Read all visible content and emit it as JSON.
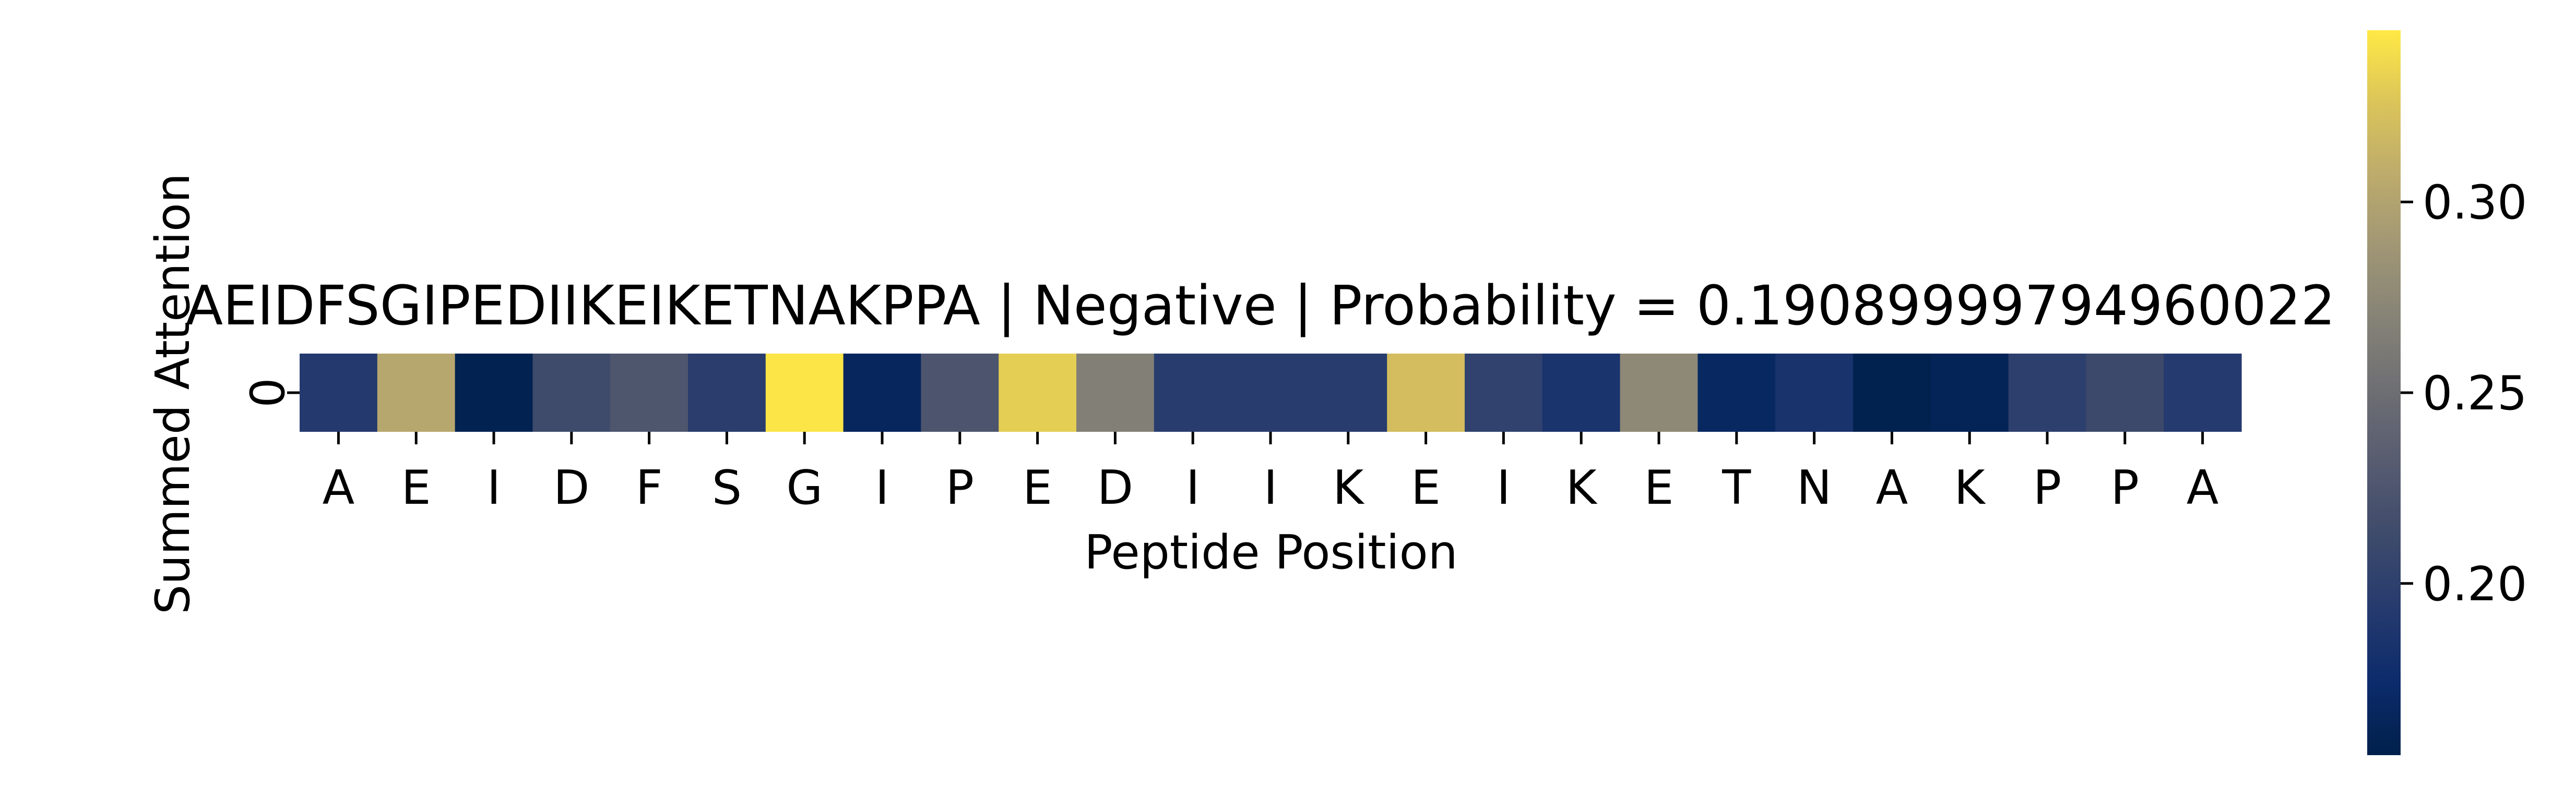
{
  "chart_data": {
    "type": "heatmap",
    "title": "AEIDFSGIPEDIIKEIKETNAKPPA | Negative | Probability = 0.19089999794960022",
    "xlabel": "Peptide Position",
    "ylabel": "Summed Attention",
    "x_categories": [
      "A",
      "E",
      "I",
      "D",
      "F",
      "S",
      "G",
      "I",
      "P",
      "E",
      "D",
      "I",
      "I",
      "K",
      "E",
      "I",
      "K",
      "E",
      "T",
      "N",
      "A",
      "K",
      "P",
      "P",
      "A"
    ],
    "y_categories": [
      "0"
    ],
    "values": [
      [
        0.192,
        0.303,
        0.158,
        0.213,
        0.225,
        0.197,
        0.343,
        0.166,
        0.224,
        0.331,
        0.267,
        0.195,
        0.195,
        0.195,
        0.321,
        0.202,
        0.185,
        0.275,
        0.168,
        0.184,
        0.157,
        0.161,
        0.199,
        0.211,
        0.193
      ]
    ],
    "colormap": "cividis",
    "colorbar": {
      "range": [
        0.155,
        0.345
      ],
      "ticks": [
        "0.20",
        "0.25",
        "0.30"
      ],
      "tick_values": [
        0.2,
        0.25,
        0.3
      ]
    },
    "colors": {
      "low": "#00204c",
      "mid": "#7b7b78",
      "high": "#ffe945"
    }
  }
}
